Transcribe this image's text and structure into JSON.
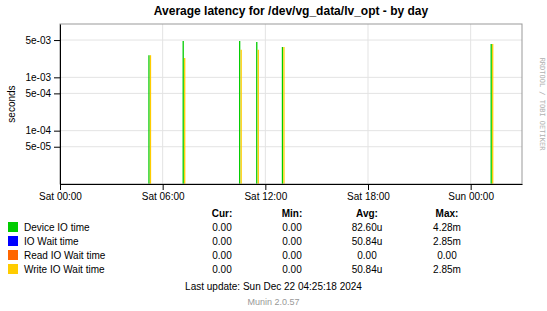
{
  "chart_data": {
    "type": "stem",
    "title": "Average latency for /dev/vg_data/lv_opt - by day",
    "ylabel": "seconds",
    "log": "y",
    "grid": true,
    "x": [
      5.2,
      7.2,
      10.5,
      11.5,
      13.0,
      25.2
    ],
    "xlim": [
      0,
      27
    ],
    "xticks": [
      {
        "value": 0,
        "label": "Sat 00:00"
      },
      {
        "value": 6,
        "label": "Sat 06:00"
      },
      {
        "value": 12,
        "label": "Sat 12:00"
      },
      {
        "value": 18,
        "label": "Sat 18:00"
      },
      {
        "value": 24,
        "label": "Sun 00:00"
      }
    ],
    "ylim": [
      1e-05,
      0.01
    ],
    "yticks": [
      {
        "value": 5e-05,
        "label": "5e-05"
      },
      {
        "value": 0.0001,
        "label": "1e-04"
      },
      {
        "value": 0.0005,
        "label": "5e-04"
      },
      {
        "value": 0.001,
        "label": "1e-03"
      },
      {
        "value": 0.005,
        "label": "5e-03"
      }
    ],
    "series": [
      {
        "name": "Device IO time",
        "color": "#00cc00",
        "values": [
          0.0026,
          0.0048,
          0.0048,
          0.0046,
          0.0037,
          0.0042
        ]
      },
      {
        "name": "IO Wait time",
        "color": "#0000ff",
        "values": [
          null,
          null,
          null,
          null,
          null,
          null
        ]
      },
      {
        "name": "Read IO Wait time",
        "color": "#ff6600",
        "values": [
          null,
          null,
          null,
          null,
          null,
          null
        ]
      },
      {
        "name": "Write IO Wait time",
        "color": "#ffcc00",
        "values": [
          0.0026,
          0.0023,
          0.0033,
          0.0033,
          0.0037,
          0.0042
        ]
      }
    ],
    "table": {
      "headers": [
        "Cur:",
        "Min:",
        "Avg:",
        "Max:"
      ],
      "rows": [
        [
          "0.00",
          "0.00",
          "82.60u",
          "4.28m"
        ],
        [
          "0.00",
          "0.00",
          "50.84u",
          "2.85m"
        ],
        [
          "0.00",
          "0.00",
          "0.00",
          "0.00"
        ],
        [
          "0.00",
          "0.00",
          "50.84u",
          "2.85m"
        ]
      ]
    },
    "annotations": [
      "RRDTOOL / TOBI OETIKER",
      "Last update: Sun Dec 22 04:25:18 2024",
      "Munin 2.0.57"
    ]
  }
}
